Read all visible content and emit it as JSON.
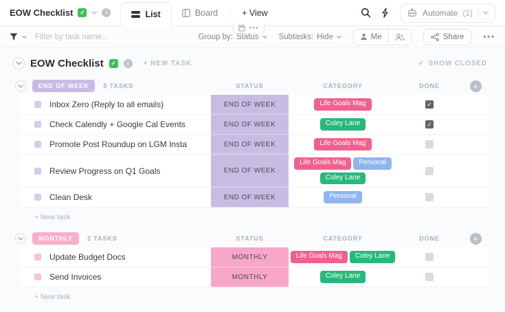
{
  "topbar": {
    "title": "EOW Checklist",
    "title_emoji_check": "✓",
    "tabs": {
      "list": "List",
      "board": "Board",
      "add_view": "+ View"
    },
    "automate": {
      "label": "Automate",
      "count": "(1)"
    },
    "info_glyph": "i"
  },
  "minibar": {
    "more": "•••"
  },
  "toolbar": {
    "filter_placeholder": "Filter by task name...",
    "group_by": {
      "label": "Group by:",
      "value": "Status"
    },
    "subtasks": {
      "label": "Subtasks:",
      "value": "Hide"
    },
    "me_label": "Me",
    "share_label": "Share",
    "more": "•••"
  },
  "content": {
    "title": "EOW Checklist",
    "title_emoji_check": "✓",
    "info_glyph": "i",
    "new_task_label": "+ NEW TASK",
    "show_closed_label": "SHOW CLOSED",
    "show_closed_check": "✓"
  },
  "glyphs": {
    "check": "✓",
    "plus": "+"
  },
  "colors": {
    "checked_checkbox": "#636569",
    "unchecked_checkbox": "#d9dbde",
    "tag_pink": "#f0618f",
    "tag_green": "#27b97c",
    "tag_blue": "#8fb5ee"
  },
  "groups": [
    {
      "name": "END OF WEEK",
      "count": "5 TASKS",
      "status": "END OF WEEK",
      "status_bg": "#c9bce3",
      "badge_bg": "#c9bce3",
      "square": "#d6cbee",
      "columns": [
        "STATUS",
        "CATEGORY",
        "DONE"
      ],
      "new_task": "+ New task",
      "tasks": [
        {
          "name": "Inbox Zero (Reply to all emails)",
          "tags": [
            {
              "label": "Life Goals Mag",
              "bg": "#f0618f"
            }
          ],
          "done": true
        },
        {
          "name": "Check Calendly + Google Cal Events",
          "tags": [
            {
              "label": "Coley Lane",
              "bg": "#27b97c"
            }
          ],
          "done": true
        },
        {
          "name": "Promote Post Roundup on LGM Insta",
          "tags": [
            {
              "label": "Life Goals Mag",
              "bg": "#f0618f"
            }
          ],
          "done": false
        },
        {
          "name": "Review Progress on Q1 Goals",
          "tags": [
            {
              "label": "Life Goals Mag",
              "bg": "#f0618f"
            },
            {
              "label": "Personal",
              "bg": "#8fb5ee"
            },
            {
              "label": "Coley Lane",
              "bg": "#27b97c"
            }
          ],
          "done": false
        },
        {
          "name": "Clean Desk",
          "tags": [
            {
              "label": "Personal",
              "bg": "#8fb5ee"
            }
          ],
          "done": false
        }
      ]
    },
    {
      "name": "MONTHLY",
      "count": "2 TASKS",
      "status": "MONTHLY",
      "status_bg": "#f8a7c8",
      "badge_bg": "#f8aecb",
      "square": "#f8c2d8",
      "columns": [
        "STATUS",
        "CATEGORY",
        "DONE"
      ],
      "new_task": "+ New task",
      "tasks": [
        {
          "name": "Update Budget Docs",
          "tags": [
            {
              "label": "Life Goals Mag",
              "bg": "#f0618f"
            },
            {
              "label": "Coley Lane",
              "bg": "#27b97c"
            }
          ],
          "done": false
        },
        {
          "name": "Send Invoices",
          "tags": [
            {
              "label": "Coley Lane",
              "bg": "#27b97c"
            }
          ],
          "done": false
        }
      ]
    }
  ]
}
